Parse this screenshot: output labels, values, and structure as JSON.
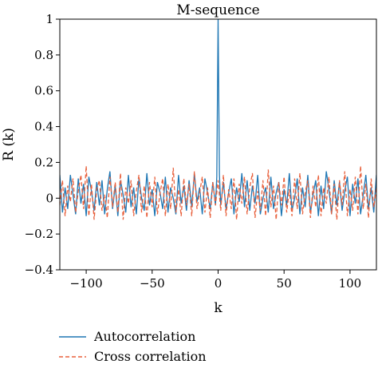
{
  "chart_data": {
    "type": "line",
    "title": "M-sequence",
    "xlabel": "k",
    "ylabel": "R (k)",
    "xlim": [
      -120,
      120
    ],
    "ylim": [
      -0.4,
      1
    ],
    "xticks": [
      -100,
      -50,
      0,
      50,
      100
    ],
    "xtick_labels": [
      "−100",
      "−50",
      "0",
      "50",
      "100"
    ],
    "yticks": [
      -0.4,
      -0.2,
      0,
      0.2,
      0.4,
      0.6,
      0.8,
      1
    ],
    "ytick_labels": [
      "−0.4",
      "−0.2",
      "0",
      "0.2",
      "0.4",
      "0.6",
      "0.8",
      "1"
    ],
    "grid": false,
    "legend_position": "below-left",
    "series": [
      {
        "name": "Autocorrelation",
        "color": "#1f77b4",
        "style": "solid",
        "x": [
          -120,
          -118,
          -116,
          -114,
          -112,
          -110,
          -108,
          -106,
          -104,
          -102,
          -100,
          -98,
          -96,
          -94,
          -92,
          -90,
          -88,
          -86,
          -84,
          -82,
          -80,
          -78,
          -76,
          -74,
          -72,
          -70,
          -68,
          -66,
          -64,
          -62,
          -60,
          -58,
          -56,
          -54,
          -52,
          -50,
          -48,
          -46,
          -44,
          -42,
          -40,
          -38,
          -36,
          -34,
          -32,
          -30,
          -28,
          -26,
          -24,
          -22,
          -20,
          -18,
          -16,
          -14,
          -12,
          -10,
          -8,
          -6,
          -4,
          -2,
          -1,
          0,
          1,
          2,
          4,
          6,
          8,
          10,
          12,
          14,
          16,
          18,
          20,
          22,
          24,
          26,
          28,
          30,
          32,
          34,
          36,
          38,
          40,
          42,
          44,
          46,
          48,
          50,
          52,
          54,
          56,
          58,
          60,
          62,
          64,
          66,
          68,
          70,
          72,
          74,
          76,
          78,
          80,
          82,
          84,
          86,
          88,
          90,
          92,
          94,
          96,
          98,
          100,
          102,
          104,
          106,
          108,
          110,
          112,
          114,
          116,
          118,
          120
        ],
        "y": [
          0.13,
          -0.08,
          0.06,
          -0.06,
          0.13,
          0.02,
          -0.09,
          0.11,
          -0.03,
          0.08,
          -0.1,
          0.12,
          0.04,
          -0.07,
          0.09,
          -0.04,
          0.1,
          -0.09,
          0.05,
          0.15,
          -0.06,
          0.07,
          -0.1,
          0.1,
          0.02,
          -0.08,
          0.13,
          -0.05,
          0.06,
          -0.09,
          0.11,
          0.0,
          -0.07,
          0.14,
          -0.04,
          0.05,
          -0.1,
          0.09,
          0.03,
          -0.06,
          0.12,
          -0.08,
          0.06,
          0.0,
          -0.09,
          0.13,
          -0.03,
          0.07,
          -0.07,
          0.1,
          -0.05,
          0.14,
          -0.02,
          0.06,
          -0.09,
          0.11,
          0.03,
          -0.06,
          0.09,
          -0.04,
          0.12,
          1.0,
          0.13,
          -0.04,
          0.09,
          -0.06,
          0.03,
          0.11,
          -0.09,
          0.06,
          -0.02,
          0.14,
          -0.05,
          0.1,
          -0.07,
          0.07,
          -0.03,
          0.13,
          -0.09,
          0.0,
          0.06,
          -0.08,
          0.12,
          -0.06,
          0.03,
          0.09,
          -0.1,
          0.05,
          -0.04,
          0.14,
          -0.07,
          0.0,
          0.11,
          -0.09,
          0.06,
          -0.05,
          0.13,
          -0.08,
          0.02,
          0.1,
          -0.1,
          0.07,
          -0.06,
          0.15,
          0.05,
          -0.09,
          0.1,
          -0.04,
          0.09,
          -0.07,
          0.04,
          0.12,
          -0.1,
          0.08,
          -0.03,
          0.11,
          -0.09,
          0.02,
          0.13,
          -0.06,
          0.06,
          -0.08,
          0.13
        ]
      },
      {
        "name": "Cross correlation",
        "color": "#e8603c",
        "style": "dashed",
        "x": [
          -120,
          -118,
          -116,
          -114,
          -112,
          -110,
          -108,
          -106,
          -104,
          -102,
          -100,
          -98,
          -96,
          -94,
          -92,
          -90,
          -88,
          -86,
          -84,
          -82,
          -80,
          -78,
          -76,
          -74,
          -72,
          -70,
          -68,
          -66,
          -64,
          -62,
          -60,
          -58,
          -56,
          -54,
          -52,
          -50,
          -48,
          -46,
          -44,
          -42,
          -40,
          -38,
          -36,
          -34,
          -32,
          -30,
          -28,
          -26,
          -24,
          -22,
          -20,
          -18,
          -16,
          -14,
          -12,
          -10,
          -8,
          -6,
          -4,
          -2,
          0,
          2,
          4,
          6,
          8,
          10,
          12,
          14,
          16,
          18,
          20,
          22,
          24,
          26,
          28,
          30,
          32,
          34,
          36,
          38,
          40,
          42,
          44,
          46,
          48,
          50,
          52,
          54,
          56,
          58,
          60,
          62,
          64,
          66,
          68,
          70,
          72,
          74,
          76,
          78,
          80,
          82,
          84,
          86,
          88,
          90,
          92,
          94,
          96,
          98,
          100,
          102,
          104,
          106,
          108,
          110,
          112,
          114,
          116,
          118,
          120
        ],
        "y": [
          -0.04,
          0.1,
          -0.1,
          0.07,
          -0.02,
          0.11,
          -0.08,
          0.04,
          0.13,
          -0.06,
          0.18,
          -0.1,
          0.08,
          -0.12,
          0.05,
          0.1,
          -0.07,
          0.02,
          -0.11,
          0.12,
          -0.05,
          0.09,
          -0.08,
          0.14,
          -0.12,
          0.06,
          -0.03,
          0.1,
          -0.1,
          0.04,
          0.13,
          -0.08,
          0.07,
          -0.11,
          0.09,
          -0.05,
          0.12,
          -0.09,
          0.03,
          0.11,
          -0.1,
          0.08,
          -0.06,
          0.17,
          -0.08,
          0.05,
          -0.1,
          0.11,
          -0.04,
          0.08,
          -0.1,
          0.15,
          -0.06,
          0.03,
          0.12,
          -0.08,
          0.06,
          -0.11,
          0.09,
          -0.04,
          0.1,
          -0.07,
          0.13,
          -0.1,
          0.05,
          -0.06,
          0.11,
          -0.12,
          0.08,
          -0.03,
          0.12,
          -0.09,
          0.06,
          0.14,
          -0.11,
          0.04,
          -0.07,
          0.1,
          -0.1,
          0.16,
          -0.05,
          0.07,
          -0.12,
          0.09,
          -0.04,
          0.12,
          -0.08,
          0.05,
          -0.1,
          0.11,
          -0.06,
          0.14,
          -0.09,
          0.03,
          0.1,
          -0.11,
          0.07,
          -0.05,
          0.13,
          -0.1,
          0.06,
          -0.03,
          0.12,
          -0.09,
          0.08,
          -0.12,
          0.1,
          -0.04,
          0.15,
          -0.1,
          0.05,
          -0.07,
          0.12,
          -0.09,
          0.18,
          -0.06,
          0.08,
          -0.11,
          0.11,
          -0.05,
          0.06
        ]
      }
    ]
  }
}
